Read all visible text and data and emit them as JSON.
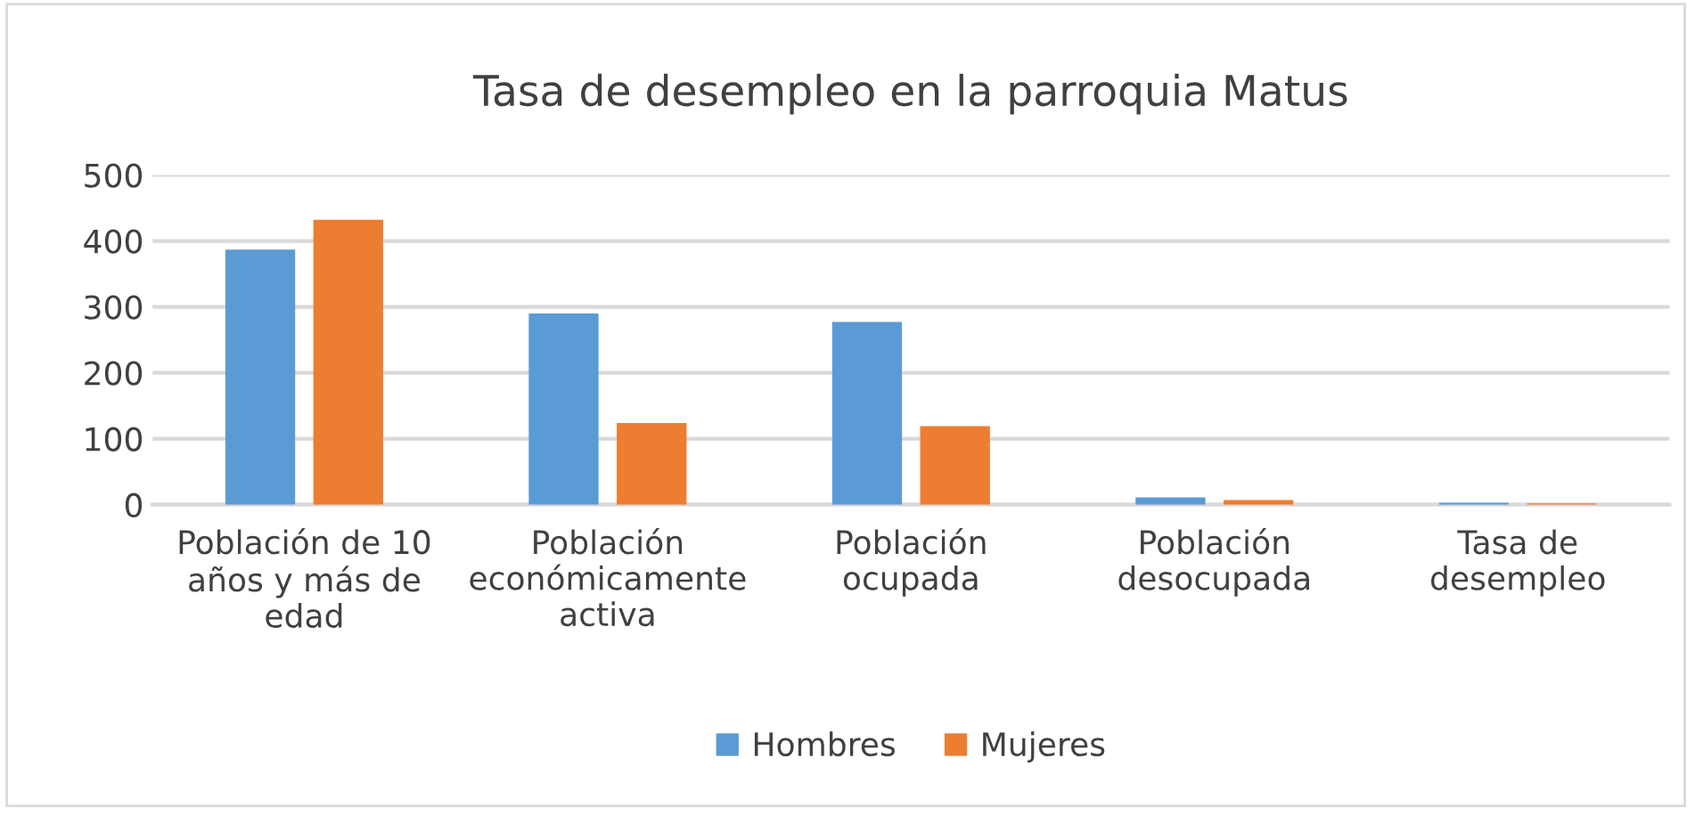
{
  "chart_data": {
    "type": "bar",
    "title": "Tasa de desempleo en la parroquia Matus",
    "categories": [
      "Población de 10\naños y más de\nedad",
      "Población\neconómicamente\nactiva",
      "Población\nocupada",
      "Población\ndesocupada",
      "Tasa de\ndesempleo"
    ],
    "series": [
      {
        "name": "Hombres",
        "color": "#5b9bd5",
        "values": [
          387,
          290,
          277,
          11,
          3
        ]
      },
      {
        "name": "Mujeres",
        "color": "#ed7d31",
        "values": [
          432,
          124,
          119,
          7,
          2
        ]
      }
    ],
    "ylim": [
      0,
      500
    ],
    "yticks": [
      0,
      100,
      200,
      300,
      400,
      500
    ],
    "grid": "y",
    "legend": "bottom"
  }
}
